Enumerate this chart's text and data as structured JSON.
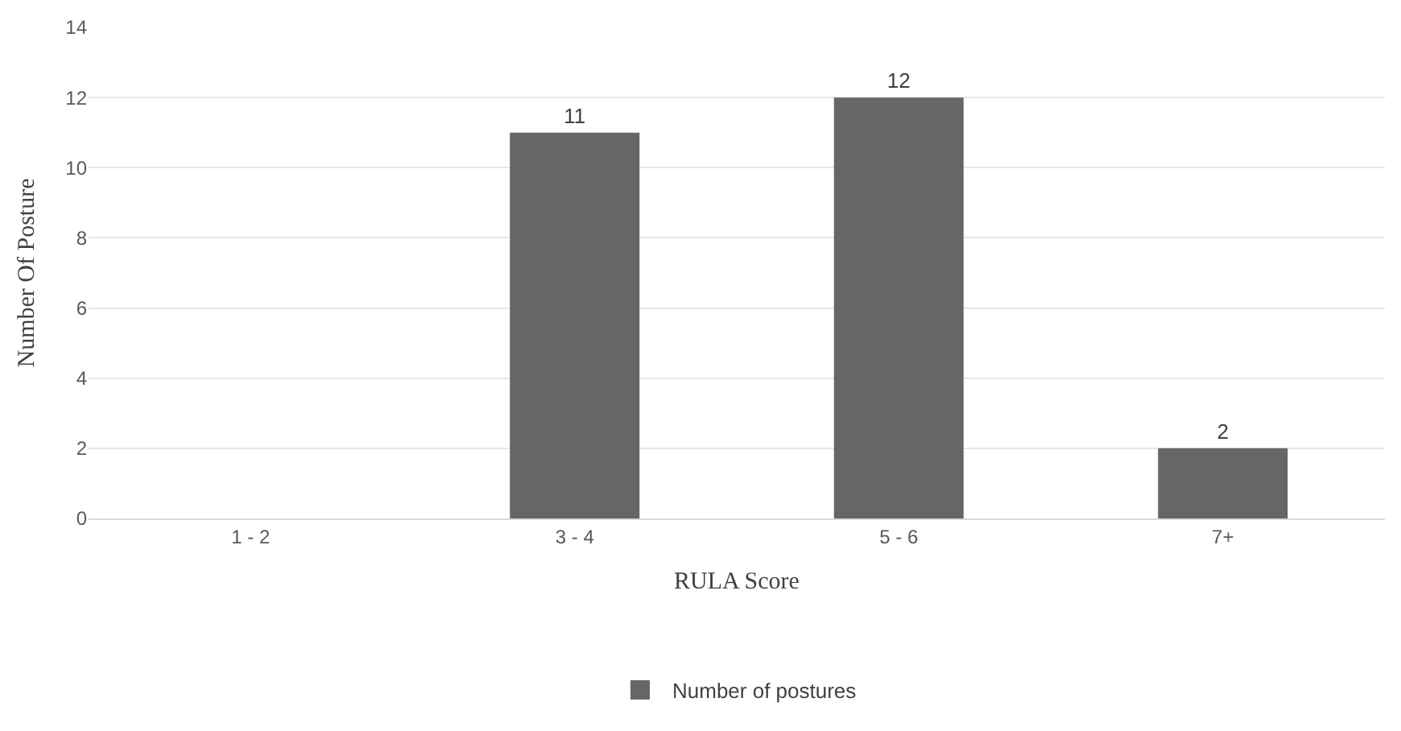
{
  "chart_data": {
    "type": "bar",
    "xlabel": "RULA Score",
    "ylabel": "Number Of Posture",
    "categories": [
      "1 - 2",
      "3 - 4",
      "5 - 6",
      "7+"
    ],
    "series": [
      {
        "name": "Number of postures",
        "color": "#666666",
        "values": [
          0,
          11,
          12,
          2
        ],
        "value_labels": [
          null,
          "11",
          "12",
          "2"
        ]
      }
    ],
    "ylim": [
      0,
      14
    ],
    "yticks": [
      0,
      2,
      4,
      6,
      8,
      10,
      12,
      14
    ],
    "grid": "y",
    "legend": "bottom"
  }
}
